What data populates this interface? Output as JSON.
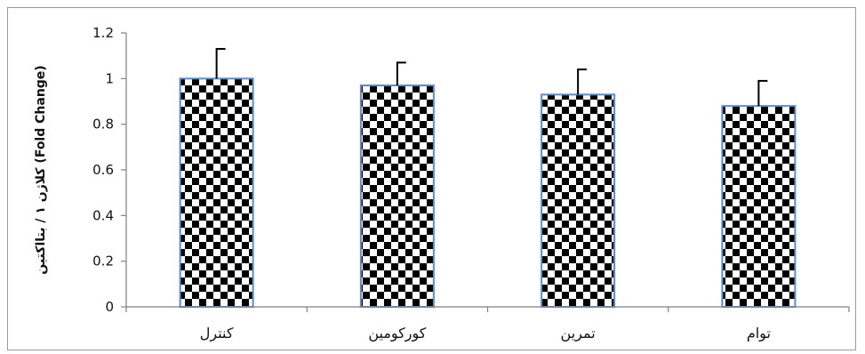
{
  "chart_data": {
    "type": "bar",
    "title": "",
    "xlabel": "",
    "ylabel": "کلاژن ۱ / بتااکتین (Fold Change)",
    "categories": [
      "کنترل",
      "کورکومین",
      "تمرین",
      "توام"
    ],
    "values": [
      1.0,
      0.97,
      0.93,
      0.88
    ],
    "error_upper": [
      0.13,
      0.1,
      0.11,
      0.11
    ],
    "ylim": [
      0,
      1.2
    ],
    "yticks": [
      0,
      0.2,
      0.4,
      0.6,
      0.8,
      1,
      1.2
    ],
    "ytick_labels": [
      "0",
      "0.2",
      "0.4",
      "0.6",
      "0.8",
      "1",
      "1.2"
    ],
    "grid": false,
    "legend": "none",
    "bar_fill": "checkerboard",
    "colors": {
      "bar_outline": "#5b8bd0",
      "checker_dark": "#000000",
      "checker_light": "#ffffff",
      "axis": "#808080",
      "error_bar": "#000000"
    }
  }
}
